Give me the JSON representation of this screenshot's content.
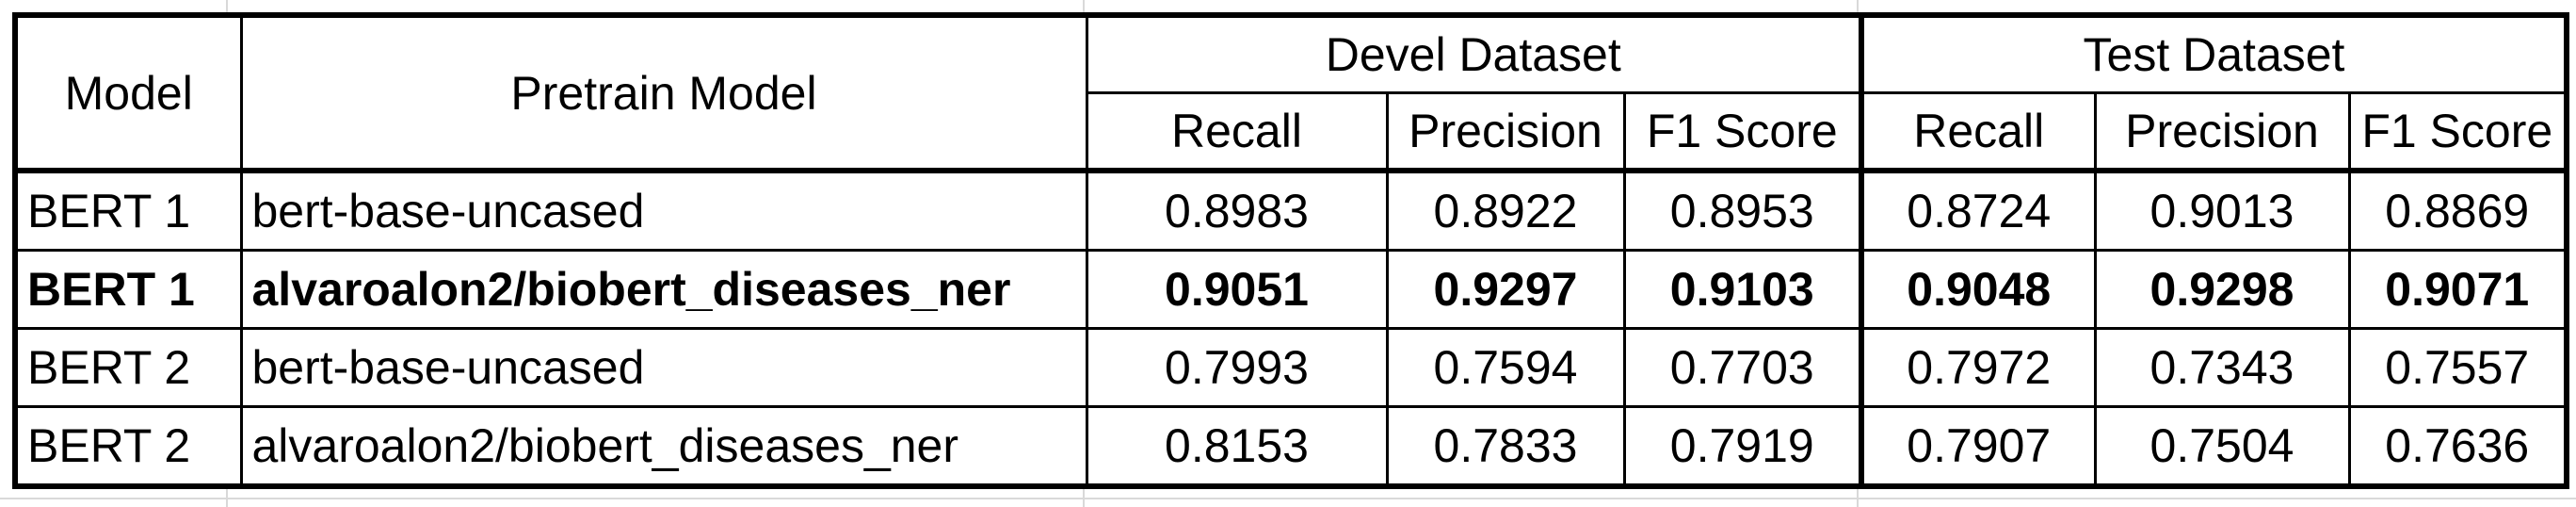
{
  "table": {
    "header": {
      "model": "Model",
      "pretrain_model": "Pretrain Model",
      "groups": [
        "Devel Dataset",
        "Test Dataset"
      ],
      "metrics": [
        "Recall",
        "Precision",
        "F1 Score",
        "Recall",
        "Precision",
        "F1 Score"
      ]
    },
    "rows": [
      {
        "model": "BERT 1",
        "pretrain": "bert-base-uncased",
        "values": [
          "0.8983",
          "0.8922",
          "0.8953",
          "0.8724",
          "0.9013",
          "0.8869"
        ],
        "bold": false
      },
      {
        "model": "BERT 1",
        "pretrain": "alvaroalon2/biobert_diseases_ner",
        "values": [
          "0.9051",
          "0.9297",
          "0.9103",
          "0.9048",
          "0.9298",
          "0.9071"
        ],
        "bold": true
      },
      {
        "model": "BERT 2",
        "pretrain": "bert-base-uncased",
        "values": [
          "0.7993",
          "0.7594",
          "0.7703",
          "0.7972",
          "0.7343",
          "0.7557"
        ],
        "bold": false
      },
      {
        "model": "BERT 2",
        "pretrain": "alvaroalon2/biobert_diseases_ner",
        "values": [
          "0.8153",
          "0.7833",
          "0.7919",
          "0.7907",
          "0.7504",
          "0.7636"
        ],
        "bold": false
      }
    ]
  }
}
